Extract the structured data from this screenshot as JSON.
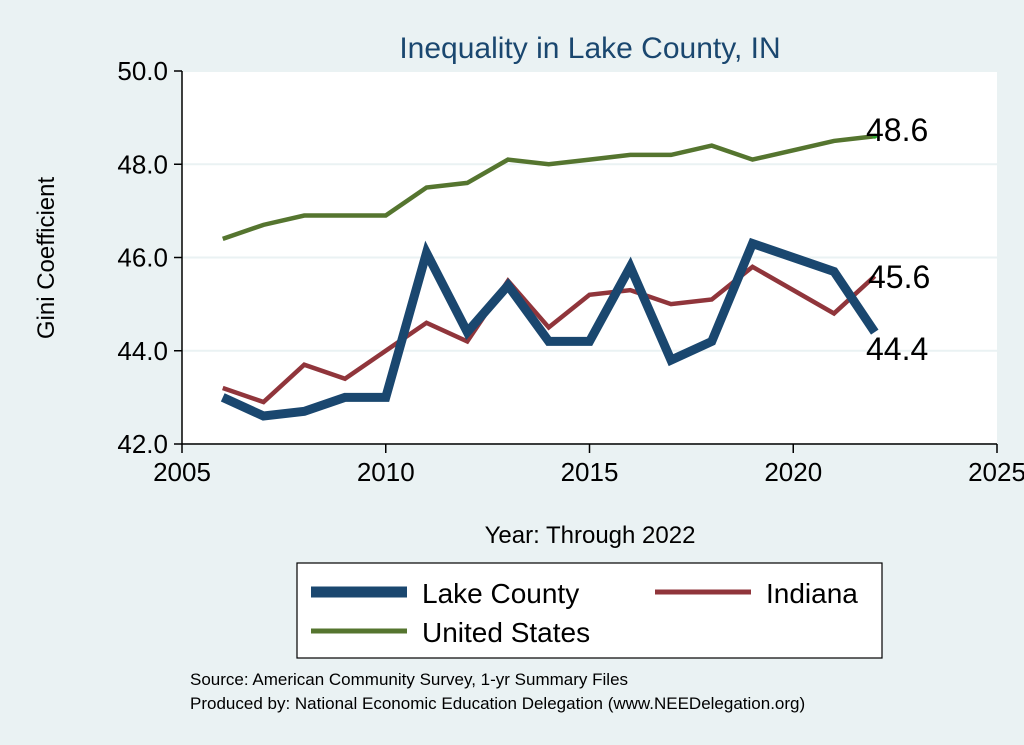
{
  "chart_data": {
    "type": "line",
    "title": "Inequality in Lake County, IN",
    "xlabel": "Year: Through 2022",
    "ylabel": "Gini Coefficient",
    "xlim": [
      2005,
      2025
    ],
    "ylim": [
      42.0,
      50.0
    ],
    "x_ticks": [
      2005,
      2010,
      2015,
      2020,
      2025
    ],
    "y_ticks": [
      "42.0",
      "44.0",
      "46.0",
      "48.0",
      "50.0"
    ],
    "grid": true,
    "legend_position": "bottom",
    "x": [
      2006,
      2007,
      2008,
      2009,
      2010,
      2011,
      2012,
      2013,
      2014,
      2015,
      2016,
      2017,
      2018,
      2019,
      2020,
      2021,
      2022
    ],
    "series": [
      {
        "name": "Lake County",
        "color": "#1a476f",
        "values": [
          43.0,
          42.6,
          42.7,
          43.0,
          43.0,
          46.1,
          44.4,
          45.4,
          44.2,
          44.2,
          45.8,
          43.8,
          44.2,
          46.3,
          46.0,
          45.7,
          44.4
        ],
        "end_label": "44.4"
      },
      {
        "name": "Indiana",
        "color": "#90353b",
        "values": [
          43.2,
          42.9,
          43.7,
          43.4,
          44.0,
          44.6,
          44.2,
          45.5,
          44.5,
          45.2,
          45.3,
          45.0,
          45.1,
          45.8,
          45.3,
          44.8,
          45.6
        ],
        "end_label": "45.6"
      },
      {
        "name": "United States",
        "color": "#55752f",
        "values": [
          46.4,
          46.7,
          46.9,
          46.9,
          46.9,
          47.5,
          47.6,
          48.1,
          48.0,
          48.1,
          48.2,
          48.2,
          48.4,
          48.1,
          48.3,
          48.5,
          48.6
        ],
        "end_label": "48.6"
      }
    ],
    "notes": [
      "Source: American Community Survey, 1-yr Summary Files",
      "Produced by: National Economic Education Delegation (www.NEEDelegation.org)"
    ]
  }
}
